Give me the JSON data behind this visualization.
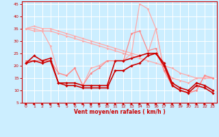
{
  "x": [
    0,
    1,
    2,
    3,
    4,
    5,
    6,
    7,
    8,
    9,
    10,
    11,
    12,
    13,
    14,
    15,
    16,
    17,
    18,
    19,
    20,
    21,
    22,
    23
  ],
  "series": [
    {
      "y": [
        35,
        36,
        35,
        35,
        34,
        33,
        32,
        31,
        30,
        29,
        28,
        27,
        26,
        25,
        24,
        25,
        35,
        18,
        15,
        14,
        13,
        15,
        15,
        15
      ],
      "color": "#ffaaaa",
      "lw": 0.9,
      "marker": "D",
      "ms": 1.8,
      "zorder": 2
    },
    {
      "y": [
        35,
        35,
        34,
        34,
        33,
        32,
        31,
        30,
        29,
        28,
        27,
        26,
        25,
        24,
        23,
        22,
        21,
        20,
        19,
        17,
        16,
        15,
        15,
        15
      ],
      "color": "#ffaaaa",
      "lw": 0.9,
      "marker": "D",
      "ms": 1.8,
      "zorder": 2
    },
    {
      "y": [
        35,
        34,
        34,
        28,
        17,
        16,
        19,
        12,
        19,
        20,
        22,
        22,
        22,
        25,
        45,
        43,
        35,
        18,
        12,
        10,
        9,
        10,
        16,
        15
      ],
      "color": "#ffaaaa",
      "lw": 0.9,
      "marker": "D",
      "ms": 1.8,
      "zorder": 2
    },
    {
      "y": [
        22,
        22,
        22,
        22,
        17,
        16,
        19,
        12,
        17,
        19,
        22,
        22,
        22,
        33,
        34,
        26,
        27,
        18,
        12,
        10,
        9,
        10,
        16,
        15
      ],
      "color": "#ff8888",
      "lw": 0.9,
      "marker": "D",
      "ms": 1.8,
      "zorder": 3
    },
    {
      "y": [
        21,
        24,
        22,
        23,
        13,
        13,
        13,
        12,
        12,
        12,
        12,
        22,
        22,
        23,
        24,
        25,
        25,
        21,
        13,
        11,
        10,
        13,
        12,
        10
      ],
      "color": "#cc0000",
      "lw": 1.2,
      "marker": "D",
      "ms": 2.2,
      "zorder": 4
    },
    {
      "y": [
        21,
        22,
        21,
        22,
        13,
        12,
        12,
        11,
        11,
        11,
        11,
        18,
        18,
        20,
        21,
        24,
        25,
        20,
        12,
        10,
        9,
        12,
        11,
        9
      ],
      "color": "#cc0000",
      "lw": 1.2,
      "marker": "D",
      "ms": 2.2,
      "zorder": 4
    }
  ],
  "ylim": [
    5,
    46
  ],
  "yticks": [
    5,
    10,
    15,
    20,
    25,
    30,
    35,
    40,
    45
  ],
  "xlim": [
    -0.5,
    23.5
  ],
  "xlabel": "Vent moyen/en rafales ( km/h )",
  "bg_color": "#cceeff",
  "grid_color": "#ffffff",
  "tick_color": "#cc0000",
  "label_color": "#cc0000",
  "spine_color": "#cc0000"
}
